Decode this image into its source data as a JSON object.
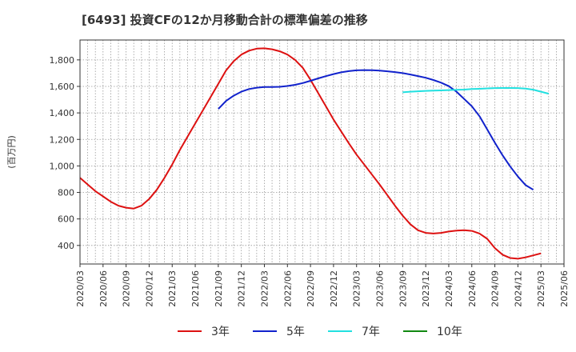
{
  "chart_data": {
    "type": "line",
    "title": "[6493]  投資CFの12か月移動合計の標準偏差の推移",
    "ylabel": "(百万円)",
    "xlabel": "",
    "ylim": [
      260,
      1950
    ],
    "yticks": [
      400,
      600,
      800,
      1000,
      1200,
      1400,
      1600,
      1800
    ],
    "ytick_labels": [
      "400",
      "600",
      "800",
      "1,000",
      "1,200",
      "1,400",
      "1,600",
      "1,800"
    ],
    "x_categories": [
      "2020/03",
      "2020/06",
      "2020/09",
      "2020/12",
      "2021/03",
      "2021/06",
      "2021/09",
      "2021/12",
      "2022/03",
      "2022/06",
      "2022/09",
      "2022/12",
      "2023/03",
      "2023/06",
      "2023/09",
      "2023/12",
      "2024/03",
      "2024/06",
      "2024/09",
      "2024/12",
      "2025/03",
      "2025/06"
    ],
    "grid": true,
    "legend_position": "bottom",
    "series": [
      {
        "name": "3年",
        "color": "#dd1111",
        "start_index": 0,
        "values": [
          910,
          860,
          810,
          770,
          730,
          700,
          685,
          678,
          700,
          750,
          820,
          910,
          1010,
          1120,
          1220,
          1320,
          1420,
          1520,
          1620,
          1720,
          1790,
          1840,
          1870,
          1885,
          1887,
          1880,
          1865,
          1840,
          1800,
          1740,
          1650,
          1550,
          1450,
          1350,
          1260,
          1170,
          1085,
          1010,
          935,
          860,
          780,
          700,
          625,
          560,
          515,
          495,
          490,
          495,
          505,
          512,
          515,
          510,
          490,
          450,
          380,
          330,
          305,
          300,
          310,
          325,
          340
        ]
      },
      {
        "name": "5年",
        "color": "#1122cc",
        "start_index": 18,
        "values": [
          1430,
          1490,
          1530,
          1560,
          1580,
          1590,
          1595,
          1595,
          1597,
          1603,
          1612,
          1625,
          1642,
          1660,
          1677,
          1693,
          1706,
          1715,
          1721,
          1723,
          1722,
          1719,
          1714,
          1708,
          1700,
          1690,
          1678,
          1665,
          1648,
          1628,
          1602,
          1560,
          1505,
          1450,
          1375,
          1275,
          1175,
          1080,
          995,
          920,
          855,
          820
        ]
      },
      {
        "name": "7年",
        "color": "#22e0e0",
        "start_index": 42,
        "values": [
          1555,
          1560,
          1563,
          1566,
          1568,
          1570,
          1572,
          1574,
          1576,
          1580,
          1582,
          1585,
          1587,
          1588,
          1588,
          1587,
          1583,
          1575,
          1560,
          1545
        ]
      },
      {
        "name": "10年",
        "color": "#118811",
        "start_index": null,
        "values": []
      }
    ]
  }
}
